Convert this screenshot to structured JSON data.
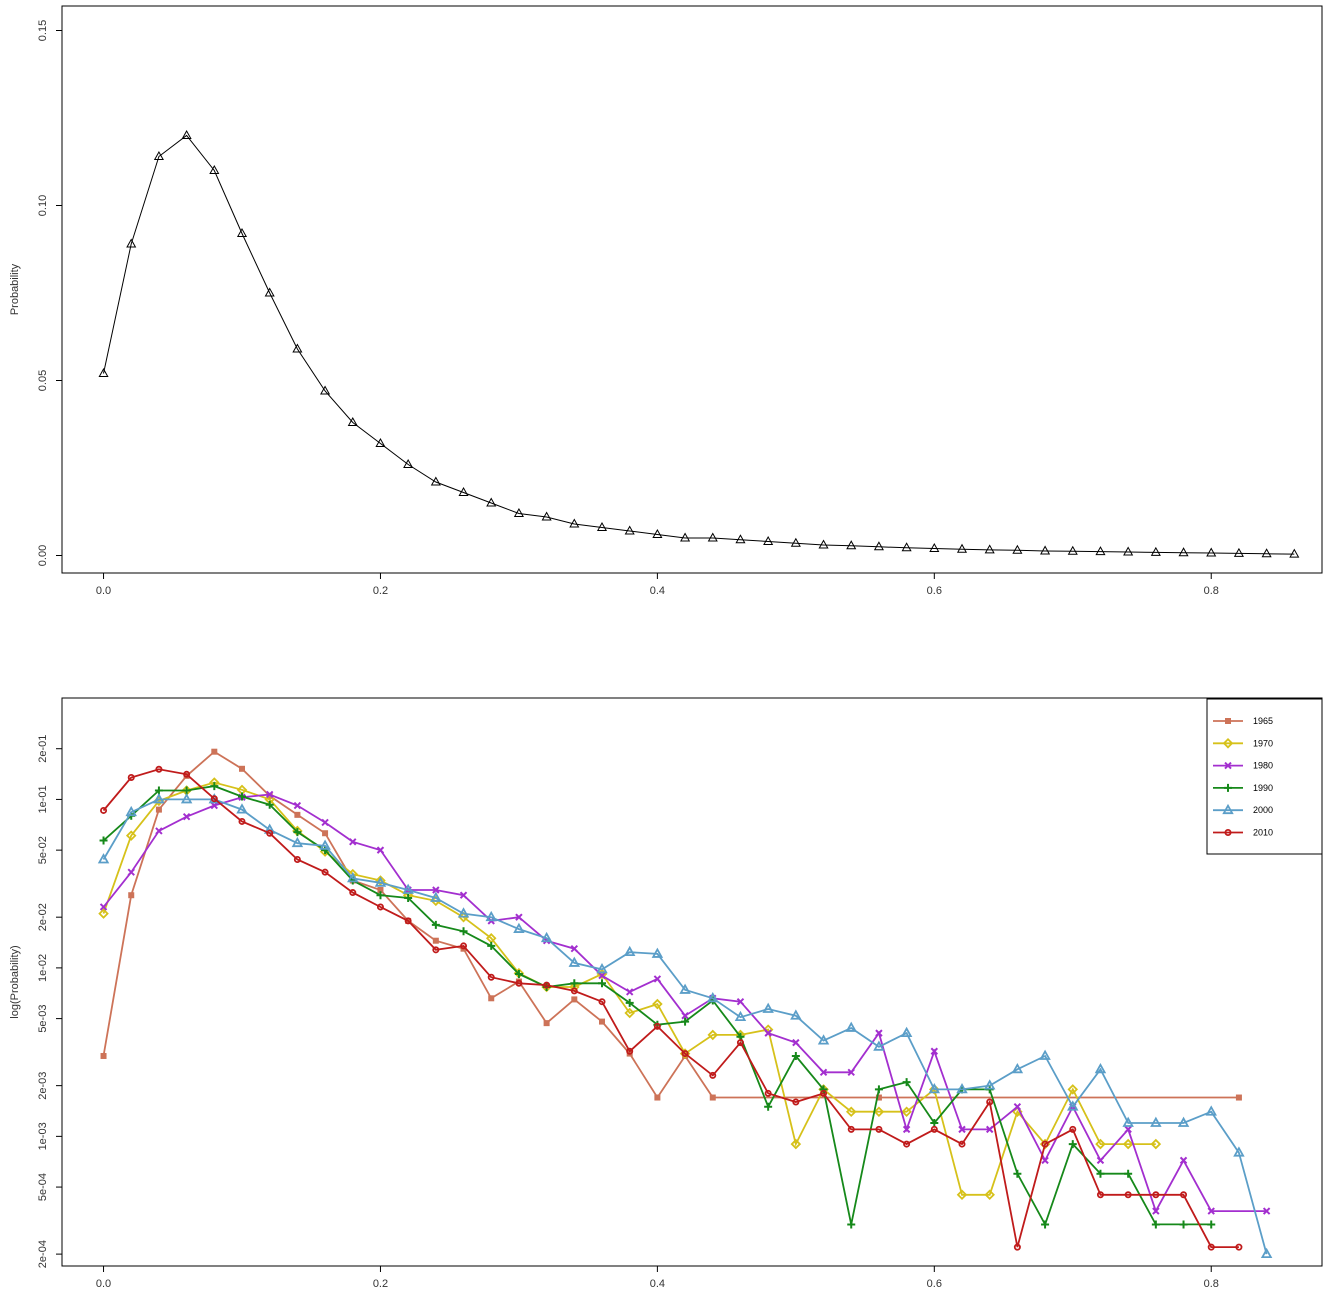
{
  "chart_data": [
    {
      "type": "line",
      "title": "",
      "xlabel": "",
      "ylabel": "Probability",
      "xlim": [
        -0.03,
        0.88
      ],
      "ylim": [
        -0.005,
        0.157
      ],
      "x_ticks": [
        "0.0",
        "0.2",
        "0.4",
        "0.6",
        "0.8"
      ],
      "y_ticks": [
        "0.00",
        "0.05",
        "0.10",
        "0.15"
      ],
      "x_tick_values": [
        0,
        0.2,
        0.4,
        0.6,
        0.8
      ],
      "y_tick_values": [
        0,
        0.05,
        0.1,
        0.15
      ],
      "grid": false,
      "series": [
        {
          "color": "#000000",
          "marker": "triangle-open",
          "x": [
            0.0,
            0.02,
            0.04,
            0.06,
            0.08,
            0.1,
            0.12,
            0.14,
            0.16,
            0.18,
            0.2,
            0.22,
            0.24,
            0.26,
            0.28,
            0.3,
            0.32,
            0.34,
            0.36,
            0.38,
            0.4,
            0.42,
            0.44,
            0.46,
            0.48,
            0.5,
            0.52,
            0.54,
            0.56,
            0.58,
            0.6,
            0.62,
            0.64,
            0.66,
            0.68,
            0.7,
            0.72,
            0.74,
            0.76,
            0.78,
            0.8,
            0.82,
            0.84,
            0.86
          ],
          "y": [
            0.052,
            0.089,
            0.114,
            0.12,
            0.11,
            0.092,
            0.075,
            0.059,
            0.047,
            0.038,
            0.032,
            0.026,
            0.021,
            0.018,
            0.015,
            0.012,
            0.011,
            0.009,
            0.008,
            0.007,
            0.006,
            0.005,
            0.005,
            0.0045,
            0.004,
            0.0035,
            0.003,
            0.0028,
            0.0025,
            0.0022,
            0.002,
            0.0018,
            0.0016,
            0.0015,
            0.0013,
            0.0012,
            0.0011,
            0.001,
            0.0009,
            0.0008,
            0.0007,
            0.0006,
            0.0005,
            0.0004
          ]
        }
      ]
    },
    {
      "type": "line",
      "title": "",
      "xlabel": "",
      "ylabel": "log(Probability)",
      "log_y": true,
      "xlim": [
        -0.03,
        0.88
      ],
      "ylim": [
        0.00017,
        0.4
      ],
      "x_ticks": [
        "0.0",
        "0.2",
        "0.4",
        "0.6",
        "0.8"
      ],
      "y_ticks": [
        "2e-04",
        "5e-04",
        "1e-03",
        "2e-03",
        "5e-03",
        "1e-02",
        "2e-02",
        "5e-02",
        "1e-01",
        "2e-01"
      ],
      "x_tick_values": [
        0,
        0.2,
        0.4,
        0.6,
        0.8
      ],
      "y_tick_values": [
        0.0002,
        0.0005,
        0.001,
        0.002,
        0.005,
        0.01,
        0.02,
        0.05,
        0.1,
        0.2
      ],
      "grid": false,
      "legend_position": "top-right",
      "series": [
        {
          "name": "1965",
          "color": "#cd7358",
          "marker": "square",
          "x": [
            0.0,
            0.02,
            0.04,
            0.06,
            0.08,
            0.1,
            0.12,
            0.14,
            0.16,
            0.18,
            0.2,
            0.22,
            0.24,
            0.26,
            0.28,
            0.3,
            0.32,
            0.34,
            0.36,
            0.38,
            0.4,
            0.42,
            0.44,
            0.56,
            0.82
          ],
          "y": [
            0.003,
            0.027,
            0.087,
            0.138,
            0.192,
            0.152,
            0.105,
            0.081,
            0.063,
            0.033,
            0.029,
            0.019,
            0.0145,
            0.013,
            0.0066,
            0.0083,
            0.0047,
            0.0065,
            0.0048,
            0.0031,
            0.0017,
            0.003,
            0.0017,
            0.0017,
            0.0017
          ]
        },
        {
          "name": "1970",
          "color": "#d6c11a",
          "marker": "diamond-open",
          "x": [
            0.0,
            0.02,
            0.04,
            0.06,
            0.08,
            0.1,
            0.12,
            0.14,
            0.16,
            0.18,
            0.2,
            0.22,
            0.24,
            0.26,
            0.28,
            0.3,
            0.32,
            0.34,
            0.36,
            0.38,
            0.4,
            0.42,
            0.44,
            0.46,
            0.48,
            0.5,
            0.52,
            0.54,
            0.56,
            0.58,
            0.6,
            0.62,
            0.64,
            0.66,
            0.68,
            0.7,
            0.72,
            0.74,
            0.76
          ],
          "y": [
            0.021,
            0.061,
            0.098,
            0.113,
            0.126,
            0.114,
            0.1,
            0.065,
            0.049,
            0.036,
            0.033,
            0.027,
            0.025,
            0.02,
            0.015,
            0.0093,
            0.0077,
            0.0077,
            0.0092,
            0.0054,
            0.0061,
            0.0031,
            0.004,
            0.004,
            0.0043,
            0.0009,
            0.0019,
            0.0014,
            0.0014,
            0.0014,
            0.0019,
            0.00045,
            0.00045,
            0.0014,
            0.0009,
            0.0019,
            0.0009,
            0.0009,
            0.0009
          ]
        },
        {
          "name": "1980",
          "color": "#a32fcf",
          "marker": "x",
          "x": [
            0.0,
            0.02,
            0.04,
            0.06,
            0.08,
            0.1,
            0.12,
            0.14,
            0.16,
            0.18,
            0.2,
            0.22,
            0.24,
            0.26,
            0.28,
            0.3,
            0.32,
            0.34,
            0.36,
            0.38,
            0.4,
            0.42,
            0.44,
            0.46,
            0.48,
            0.5,
            0.52,
            0.54,
            0.56,
            0.58,
            0.6,
            0.62,
            0.64,
            0.66,
            0.68,
            0.7,
            0.72,
            0.74,
            0.76,
            0.78,
            0.8,
            0.84
          ],
          "y": [
            0.023,
            0.037,
            0.065,
            0.079,
            0.092,
            0.103,
            0.107,
            0.092,
            0.073,
            0.056,
            0.05,
            0.029,
            0.029,
            0.027,
            0.019,
            0.02,
            0.0145,
            0.013,
            0.009,
            0.0072,
            0.0086,
            0.0052,
            0.0066,
            0.0063,
            0.0041,
            0.0036,
            0.0024,
            0.0024,
            0.0041,
            0.0011,
            0.0032,
            0.0011,
            0.0011,
            0.0015,
            0.00072,
            0.0015,
            0.00072,
            0.0011,
            0.00036,
            0.00072,
            0.00036,
            0.00036
          ]
        },
        {
          "name": "1990",
          "color": "#16891a",
          "marker": "plus",
          "x": [
            0.0,
            0.02,
            0.04,
            0.06,
            0.08,
            0.1,
            0.12,
            0.14,
            0.16,
            0.18,
            0.2,
            0.22,
            0.24,
            0.26,
            0.28,
            0.3,
            0.32,
            0.34,
            0.36,
            0.38,
            0.4,
            0.42,
            0.44,
            0.46,
            0.48,
            0.5,
            0.52,
            0.54,
            0.56,
            0.58,
            0.6,
            0.62,
            0.64,
            0.66,
            0.68,
            0.7,
            0.72,
            0.74,
            0.76,
            0.78,
            0.8
          ],
          "y": [
            0.057,
            0.08,
            0.113,
            0.113,
            0.12,
            0.104,
            0.093,
            0.064,
            0.05,
            0.033,
            0.027,
            0.026,
            0.018,
            0.0165,
            0.0135,
            0.0092,
            0.0077,
            0.0081,
            0.0081,
            0.0062,
            0.0046,
            0.0048,
            0.0064,
            0.0039,
            0.0015,
            0.003,
            0.0019,
            0.0003,
            0.0019,
            0.0021,
            0.0012,
            0.0019,
            0.0019,
            0.0006,
            0.0003,
            0.0009,
            0.0006,
            0.0006,
            0.0003,
            0.0003,
            0.0003
          ]
        },
        {
          "name": "2000",
          "color": "#5b9ec8",
          "marker": "triangle-open",
          "x": [
            0.0,
            0.02,
            0.04,
            0.06,
            0.08,
            0.1,
            0.12,
            0.14,
            0.16,
            0.18,
            0.2,
            0.22,
            0.24,
            0.26,
            0.28,
            0.3,
            0.32,
            0.34,
            0.36,
            0.38,
            0.4,
            0.42,
            0.44,
            0.46,
            0.48,
            0.5,
            0.52,
            0.54,
            0.56,
            0.58,
            0.6,
            0.62,
            0.64,
            0.66,
            0.68,
            0.7,
            0.72,
            0.74,
            0.76,
            0.78,
            0.8,
            0.82,
            0.84
          ],
          "y": [
            0.044,
            0.084,
            0.1,
            0.1,
            0.1,
            0.087,
            0.066,
            0.055,
            0.053,
            0.034,
            0.032,
            0.029,
            0.026,
            0.021,
            0.02,
            0.017,
            0.015,
            0.0107,
            0.0098,
            0.0124,
            0.0121,
            0.0074,
            0.0066,
            0.0051,
            0.0057,
            0.0052,
            0.0037,
            0.0044,
            0.0034,
            0.0041,
            0.0019,
            0.0019,
            0.002,
            0.0025,
            0.003,
            0.0015,
            0.0025,
            0.0012,
            0.0012,
            0.0012,
            0.0014,
            0.0008,
            0.0002
          ]
        },
        {
          "name": "2010",
          "color": "#c01b1b",
          "marker": "circle-open",
          "x": [
            0.0,
            0.02,
            0.04,
            0.06,
            0.08,
            0.1,
            0.12,
            0.14,
            0.16,
            0.18,
            0.2,
            0.22,
            0.24,
            0.26,
            0.28,
            0.3,
            0.32,
            0.34,
            0.36,
            0.38,
            0.4,
            0.42,
            0.44,
            0.46,
            0.48,
            0.5,
            0.52,
            0.54,
            0.56,
            0.58,
            0.6,
            0.62,
            0.64,
            0.66,
            0.68,
            0.7,
            0.72,
            0.74,
            0.76,
            0.78,
            0.8,
            0.82
          ],
          "y": [
            0.086,
            0.135,
            0.151,
            0.141,
            0.101,
            0.074,
            0.063,
            0.044,
            0.037,
            0.028,
            0.023,
            0.019,
            0.0128,
            0.0135,
            0.0088,
            0.0081,
            0.0079,
            0.0073,
            0.0063,
            0.0032,
            0.0045,
            0.0031,
            0.0023,
            0.0036,
            0.0018,
            0.0016,
            0.0018,
            0.0011,
            0.0011,
            0.0009,
            0.0011,
            0.0009,
            0.0016,
            0.00022,
            0.0009,
            0.0011,
            0.00045,
            0.00045,
            0.00045,
            0.00045,
            0.00022,
            0.00022
          ]
        }
      ]
    }
  ]
}
